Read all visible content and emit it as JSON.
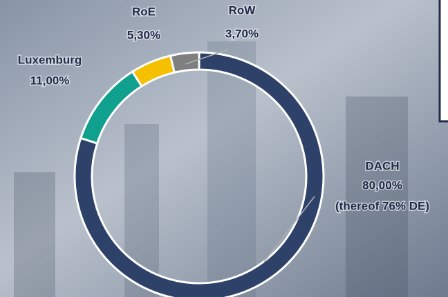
{
  "chart_data": {
    "type": "pie",
    "categories": [
      "DACH",
      "Luxemburg",
      "RoE",
      "RoW"
    ],
    "values": [
      80.0,
      11.0,
      5.3,
      3.7
    ],
    "value_labels": [
      "80,00%",
      "11,00%",
      "5,30%",
      "3,70%"
    ],
    "colors": [
      "#2e4169",
      "#10a08e",
      "#f5c000",
      "#7f7f7f"
    ],
    "annotation": "(thereof 76% DE)"
  }
}
